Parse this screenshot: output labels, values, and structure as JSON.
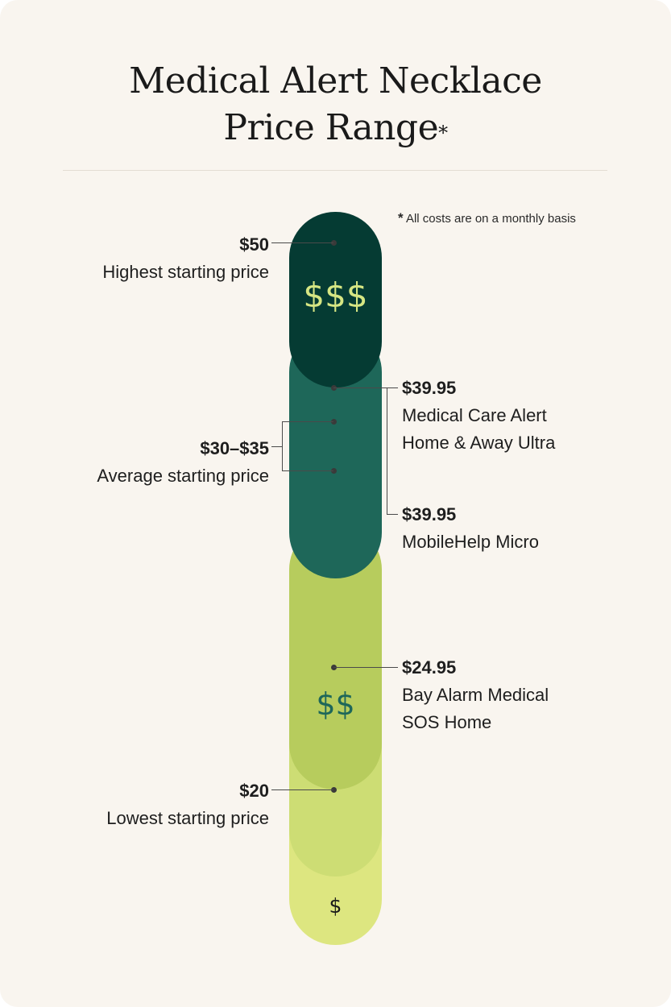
{
  "title": {
    "line1": "Medical Alert Necklace",
    "line2": "Price Range",
    "asterisk": "*"
  },
  "note": {
    "asterisk": "*",
    "text": "All costs are on a monthly basis"
  },
  "tiers": {
    "high_symbol": "$$$",
    "mid_symbol": "$$",
    "low_symbol": "$"
  },
  "left_labels": {
    "highest": {
      "price": "$50",
      "label": "Highest starting price"
    },
    "average": {
      "price": "$30–$35",
      "label": "Average starting price"
    },
    "lowest": {
      "price": "$20",
      "label": "Lowest starting price"
    }
  },
  "right_labels": {
    "medical_care_alert": {
      "price": "$39.95",
      "line1": "Medical Care Alert",
      "line2": "Home & Away Ultra"
    },
    "mobilehelp": {
      "price": "$39.95",
      "line1": "MobileHelp Micro"
    },
    "bay_alarm": {
      "price": "$24.95",
      "line1": "Bay Alarm Medical",
      "line2": "SOS Home"
    }
  },
  "colors": {
    "background": "#f9f5ef",
    "darkest_green": "#053b33",
    "dark_green": "#1e6759",
    "olive_green": "#b7cc5d",
    "light_green": "#cddd74",
    "lightest_green": "#dde680"
  }
}
